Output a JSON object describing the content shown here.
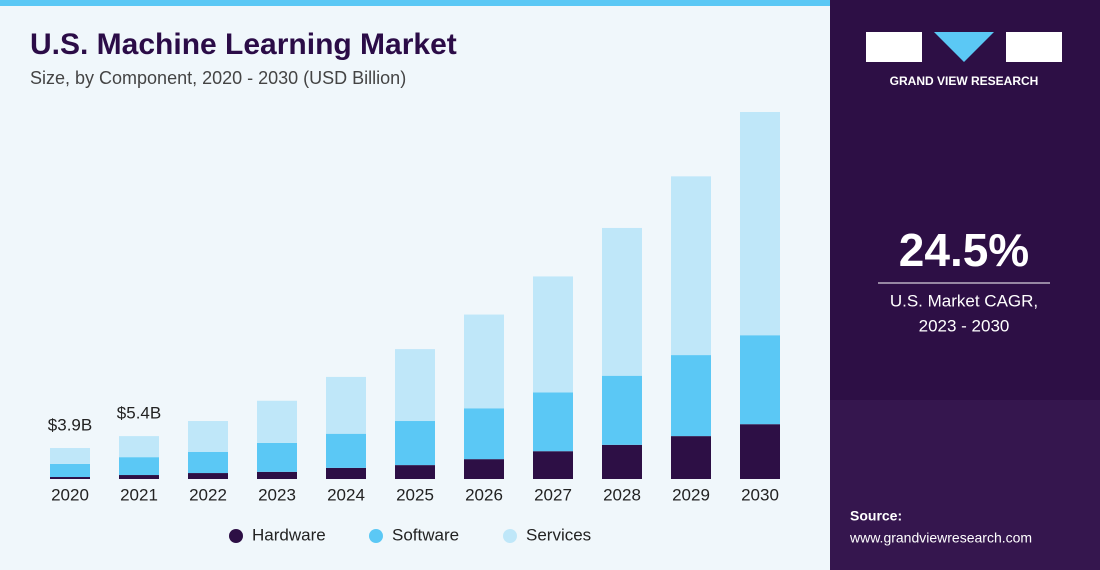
{
  "chart_data": {
    "type": "stacked-bar",
    "title": "U.S. Machine Learning Market",
    "subtitle": "Size, by Component, 2020 - 2030 (USD Billion)",
    "categories": [
      "2020",
      "2021",
      "2022",
      "2023",
      "2024",
      "2025",
      "2026",
      "2027",
      "2028",
      "2029",
      "2030"
    ],
    "series": [
      {
        "name": "Hardware",
        "color": "#2d0f45",
        "values": [
          0.25,
          0.5,
          0.75,
          0.9,
          1.4,
          1.75,
          2.5,
          3.5,
          4.3,
          5.4,
          6.9
        ]
      },
      {
        "name": "Software",
        "color": "#5bc8f5",
        "values": [
          1.65,
          2.25,
          2.65,
          3.65,
          4.3,
          5.55,
          6.4,
          7.4,
          8.7,
          10.2,
          11.2
        ]
      },
      {
        "name": "Services",
        "color": "#bfe7f9",
        "values": [
          2.0,
          2.65,
          3.9,
          5.3,
          7.15,
          9.05,
          11.8,
          14.6,
          18.6,
          22.5,
          28.1
        ]
      }
    ],
    "totals": {
      "values": [
        3.9,
        5.4
      ],
      "value_labels": [
        "$3.9B",
        "$5.4B"
      ]
    },
    "legend": "bottom"
  },
  "sidebar": {
    "brand": "GRAND VIEW RESEARCH",
    "stat": "24.5%",
    "stat_caption": [
      "U.S. Market CAGR,",
      "2023 - 2030"
    ],
    "source_label": "Source:",
    "source_url": "www.grandviewresearch.com"
  }
}
